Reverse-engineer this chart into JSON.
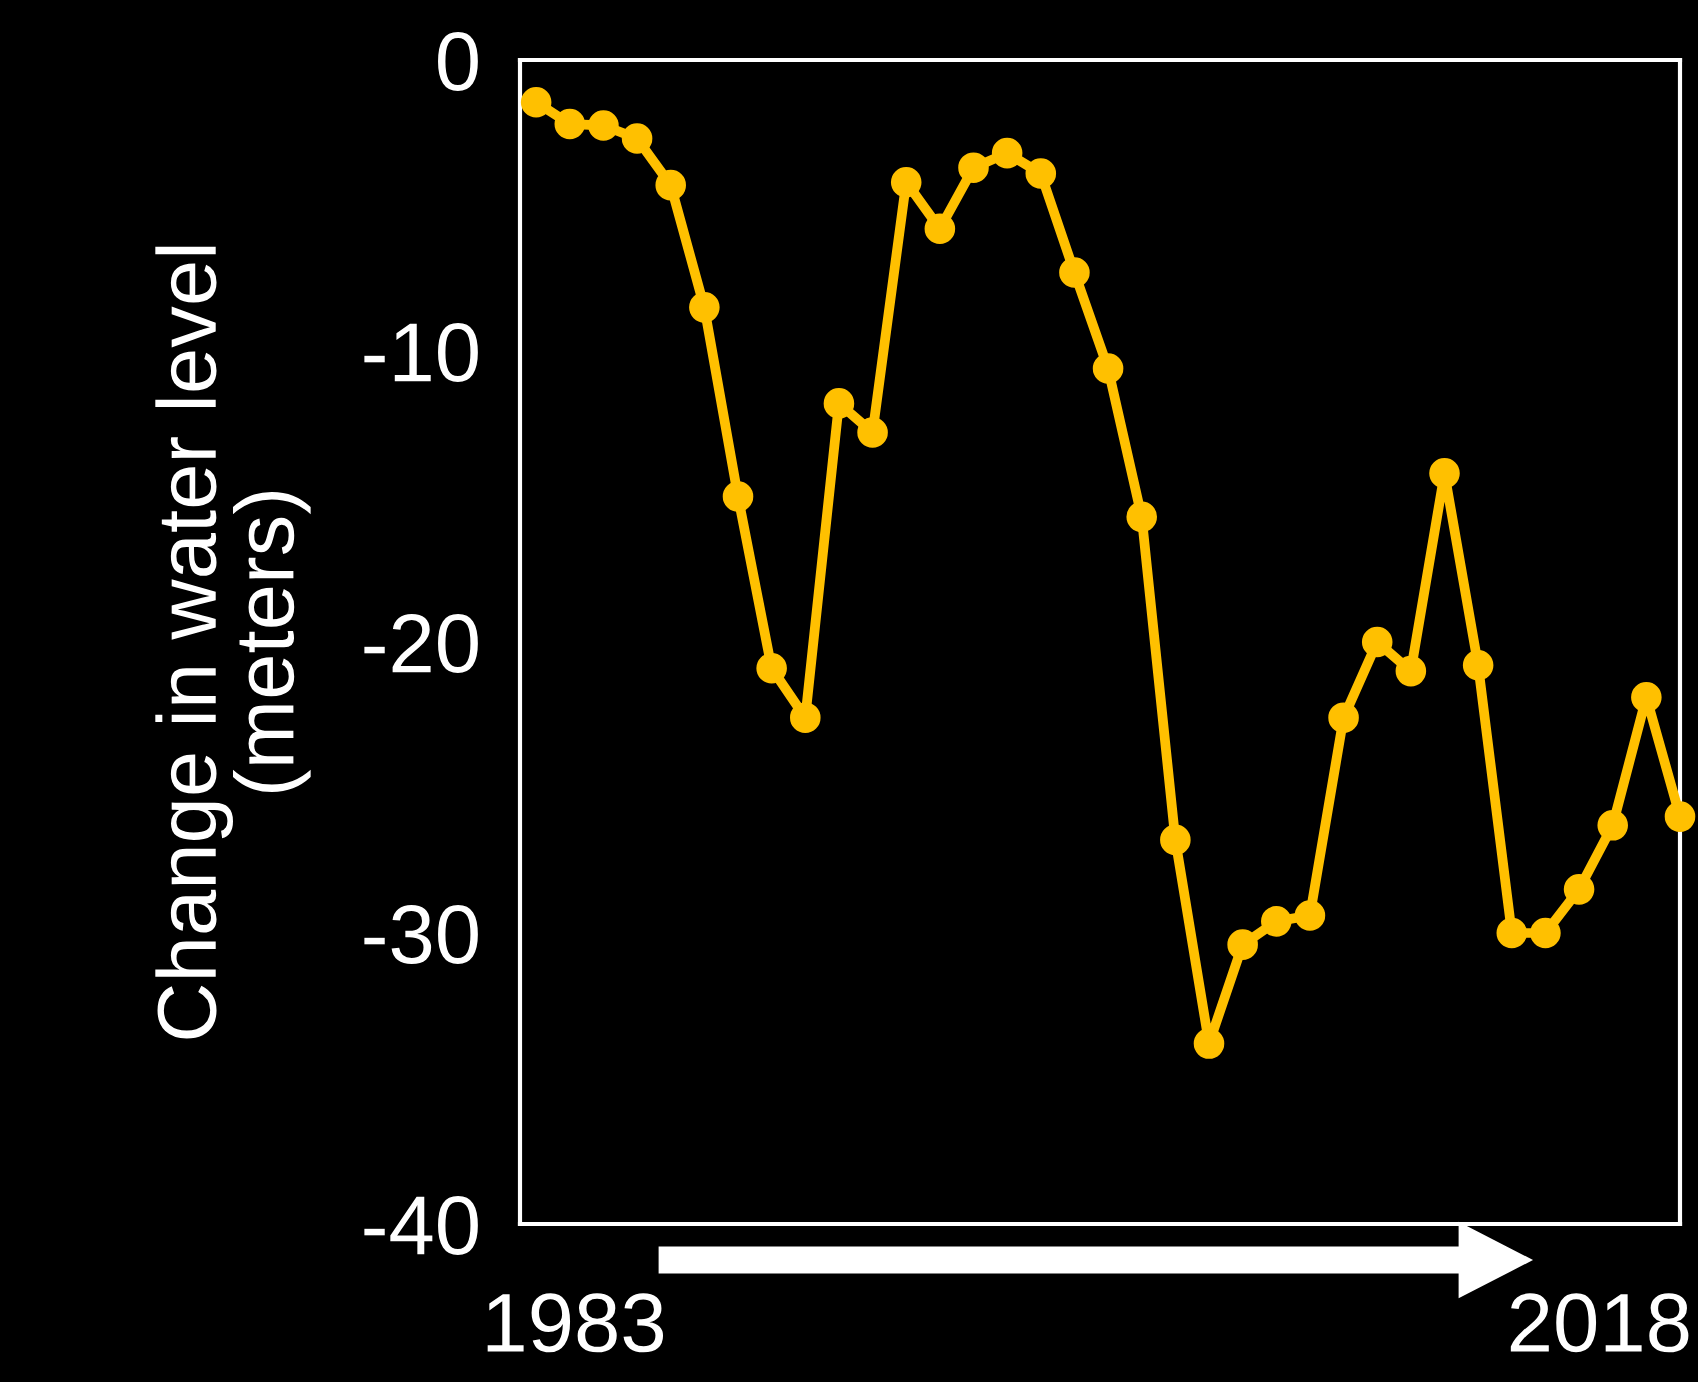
{
  "chart_data": {
    "type": "line",
    "ylabel": "Change in water level\n(meters)",
    "categories": [
      null,
      null,
      null,
      null,
      null,
      null,
      null,
      null,
      null,
      null,
      null,
      null,
      null,
      null,
      null,
      null,
      null,
      null,
      null,
      null,
      null,
      null,
      null,
      null,
      null,
      null,
      null,
      null,
      null,
      null,
      null,
      null,
      null,
      null,
      null
    ],
    "series": [
      {
        "color": "#ffc000",
        "values": [
          -1.45,
          -2.2,
          -2.25,
          -2.7,
          -4.3,
          -8.5,
          -15.0,
          -20.9,
          -22.6,
          -11.8,
          -12.8,
          -4.2,
          -5.8,
          -3.7,
          -3.2,
          -3.9,
          -7.3,
          -10.6,
          -15.7,
          -26.8,
          -33.8,
          -30.4,
          -29.6,
          -29.4,
          -22.6,
          -20.0,
          -21.0,
          -14.2,
          -20.8,
          -30.0,
          -30.0,
          -28.5,
          -26.3,
          -21.9,
          -26.0
        ]
      }
    ],
    "ylim": [
      -40,
      0
    ],
    "yticks": [
      {
        "value": -40,
        "label": "-40"
      },
      {
        "value": -30,
        "label": "-30"
      },
      {
        "value": -20,
        "label": "-20"
      },
      {
        "value": -10,
        "label": "-10"
      },
      0
    ],
    "annotations": [
      "1983",
      "2018"
    ],
    "marker": "circle",
    "line_style": "solid"
  }
}
